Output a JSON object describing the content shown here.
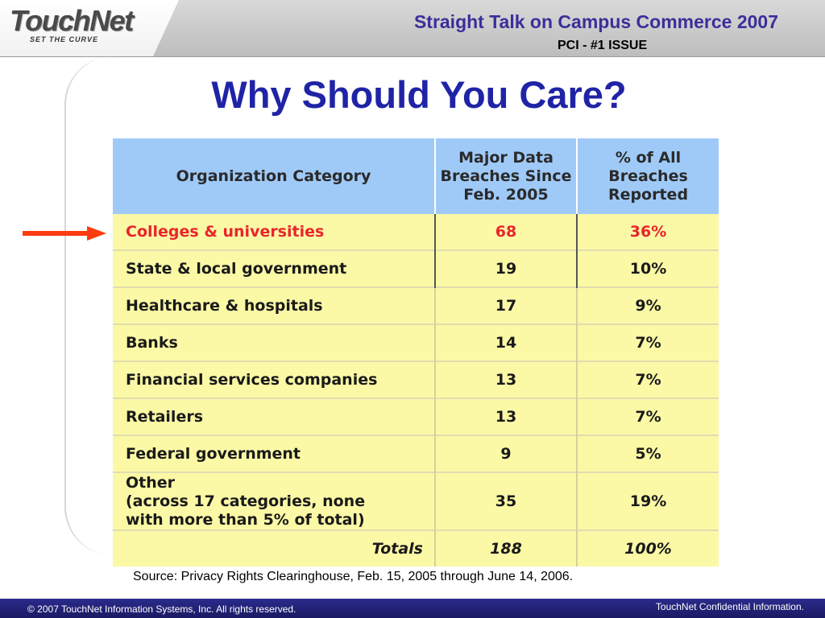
{
  "header": {
    "logo_text": "TouchNet",
    "logo_tagline": "SET THE CURVE",
    "title": "Straight Talk on Campus Commerce 2007",
    "subtitle": "PCI - #1 ISSUE"
  },
  "heading": "Why Should You Care?",
  "table": {
    "headers": {
      "category": "Organization Category",
      "breaches": "Major Data Breaches Since Feb. 2005",
      "percent": "% of All Breaches Reported"
    },
    "rows": [
      {
        "category": "Colleges & universities",
        "breaches": "68",
        "percent": "36%"
      },
      {
        "category": "State & local government",
        "breaches": "19",
        "percent": "10%"
      },
      {
        "category": "Healthcare & hospitals",
        "breaches": "17",
        "percent": "9%"
      },
      {
        "category": "Banks",
        "breaches": "14",
        "percent": "7%"
      },
      {
        "category": "Financial services companies",
        "breaches": "13",
        "percent": "7%"
      },
      {
        "category": "Retailers",
        "breaches": "13",
        "percent": "7%"
      },
      {
        "category": "Federal government",
        "breaches": "9",
        "percent": "5%"
      },
      {
        "category": "Other\n(across 17 categories, none\nwith more than 5% of total)",
        "breaches": "35",
        "percent": "19%"
      }
    ],
    "totals": {
      "label": "Totals",
      "breaches": "188",
      "percent": "100%"
    }
  },
  "source": "Source:  Privacy Rights Clearinghouse, Feb. 15, 2005 through June 14, 2006.",
  "footer": {
    "left": "© 2007 TouchNet Information Systems, Inc.  All rights reserved.",
    "right": "TouchNet Confidential Information."
  },
  "colors": {
    "header_blue": "#1f24a6",
    "table_header": "#9fcaf8",
    "table_body": "#fbf9a6",
    "highlight_red": "#e8262c",
    "arrow_red": "#ff3b10"
  }
}
